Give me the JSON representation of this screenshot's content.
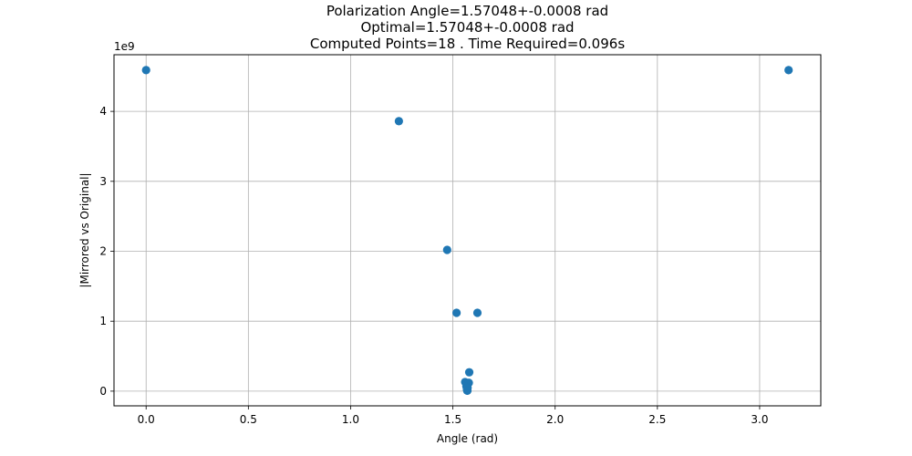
{
  "chart_data": {
    "type": "scatter",
    "title_lines": [
      "Polarization Angle=1.57048+-0.0008 rad",
      "Optimal=1.57048+-0.0008 rad",
      "Computed Points=18 . Time Required=0.096s"
    ],
    "xlabel": "Angle (rad)",
    "ylabel": "|Mirrored vs Original|",
    "y_offset_label": "1e9",
    "xlim": [
      -0.157,
      3.299
    ],
    "ylim": [
      -0.21,
      4.81
    ],
    "y_scale_factor": 1000000000,
    "xticks": [
      0.0,
      0.5,
      1.0,
      1.5,
      2.0,
      2.5,
      3.0
    ],
    "xtick_labels": [
      "0.0",
      "0.5",
      "1.0",
      "1.5",
      "2.0",
      "2.5",
      "3.0"
    ],
    "yticks": [
      0,
      1,
      2,
      3,
      4
    ],
    "ytick_labels": [
      "0",
      "1",
      "2",
      "3",
      "4"
    ],
    "grid": true,
    "point_color": "#1f77b4",
    "points": [
      {
        "x": 0.0,
        "y": 4.59
      },
      {
        "x": 1.236,
        "y": 3.86
      },
      {
        "x": 1.472,
        "y": 2.02
      },
      {
        "x": 1.518,
        "y": 1.12
      },
      {
        "x": 1.62,
        "y": 1.12
      },
      {
        "x": 1.58,
        "y": 0.27
      },
      {
        "x": 1.56,
        "y": 0.13
      },
      {
        "x": 1.578,
        "y": 0.12
      },
      {
        "x": 1.566,
        "y": 0.07
      },
      {
        "x": 1.572,
        "y": 0.05
      },
      {
        "x": 1.569,
        "y": 0.03
      },
      {
        "x": 1.5705,
        "y": 0.015
      },
      {
        "x": 1.5707,
        "y": 0.01
      },
      {
        "x": 1.5704,
        "y": 0.008
      },
      {
        "x": 1.5706,
        "y": 0.006
      },
      {
        "x": 1.5703,
        "y": 0.02
      },
      {
        "x": 1.5708,
        "y": 0.04
      },
      {
        "x": 3.1416,
        "y": 4.59
      }
    ]
  }
}
